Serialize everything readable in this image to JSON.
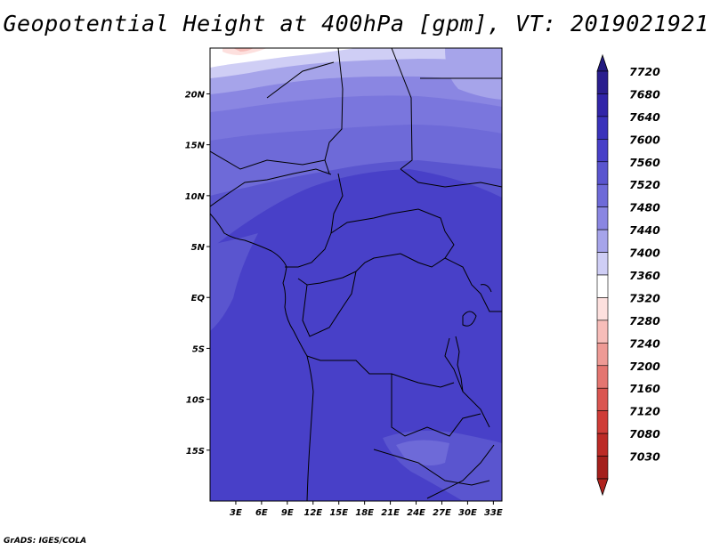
{
  "title": "Geopotential Height at 400hPa [gpm], VT: 2019021921",
  "credit": "GrADS: IGES/COLA",
  "map": {
    "lat_range": [
      -20,
      24.5
    ],
    "lon_range": [
      0,
      34
    ],
    "lat_ticks": [
      {
        "value": 20,
        "label": "20N"
      },
      {
        "value": 15,
        "label": "15N"
      },
      {
        "value": 10,
        "label": "10N"
      },
      {
        "value": 5,
        "label": "5N"
      },
      {
        "value": 0,
        "label": "EQ"
      },
      {
        "value": -5,
        "label": "5S"
      },
      {
        "value": -10,
        "label": "10S"
      },
      {
        "value": -15,
        "label": "15S"
      }
    ],
    "lon_ticks": [
      {
        "value": 3,
        "label": "3E"
      },
      {
        "value": 6,
        "label": "6E"
      },
      {
        "value": 9,
        "label": "9E"
      },
      {
        "value": 12,
        "label": "12E"
      },
      {
        "value": 15,
        "label": "15E"
      },
      {
        "value": 18,
        "label": "18E"
      },
      {
        "value": 21,
        "label": "21E"
      },
      {
        "value": 24,
        "label": "24E"
      },
      {
        "value": 27,
        "label": "27E"
      },
      {
        "value": 30,
        "label": "30E"
      },
      {
        "value": 33,
        "label": "33E"
      }
    ]
  },
  "colorbar": {
    "levels": [
      {
        "label": "7720",
        "color": "#2a1e8e"
      },
      {
        "label": "7680",
        "color": "#3125a8"
      },
      {
        "label": "7640",
        "color": "#3a32bb"
      },
      {
        "label": "7600",
        "color": "#4840c8"
      },
      {
        "label": "7560",
        "color": "#5a55cf"
      },
      {
        "label": "7520",
        "color": "#6e6ad8"
      },
      {
        "label": "7480",
        "color": "#8a86e2"
      },
      {
        "label": "7440",
        "color": "#a6a4ea"
      },
      {
        "label": "7400",
        "color": "#cfcef5"
      },
      {
        "label": "7360",
        "color": "#ffffff"
      },
      {
        "label": "7320",
        "color": "#fde0de"
      },
      {
        "label": "7280",
        "color": "#f7bdb9"
      },
      {
        "label": "7240",
        "color": "#ee9a95"
      },
      {
        "label": "7200",
        "color": "#e47570"
      },
      {
        "label": "7160",
        "color": "#da5550"
      },
      {
        "label": "7120",
        "color": "#cf3c37"
      },
      {
        "label": "7080",
        "color": "#bc2a26"
      },
      {
        "label": "7030",
        "color": "#a41f1c"
      }
    ],
    "top_color": "#231a80",
    "bottom_color": "#b0241f"
  }
}
